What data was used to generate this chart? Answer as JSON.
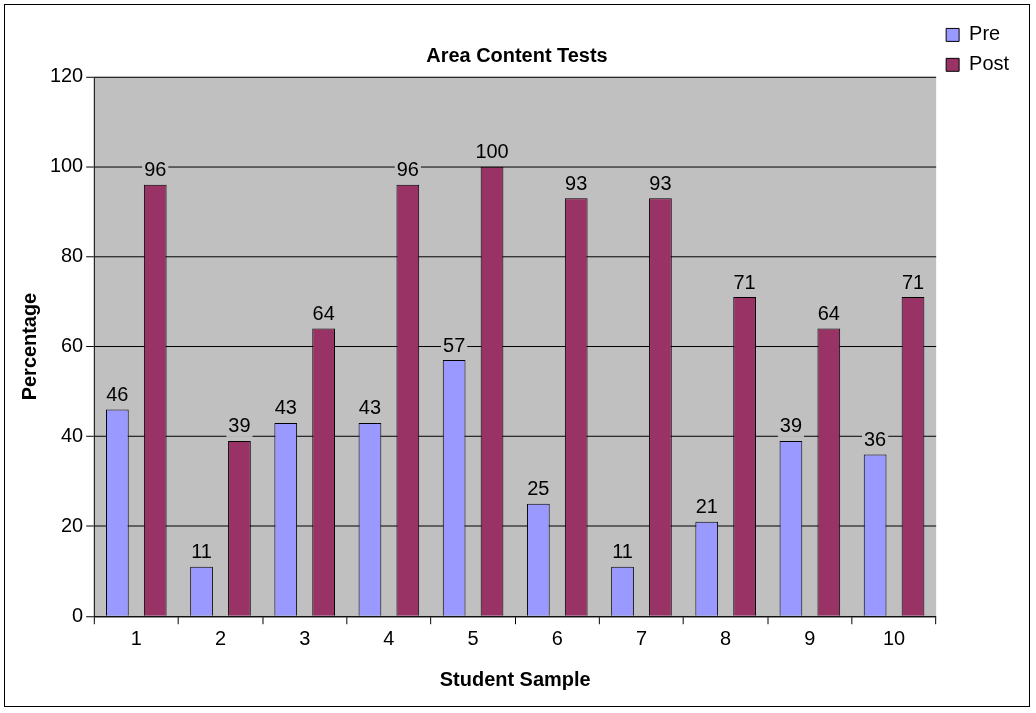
{
  "chart_data": {
    "type": "bar",
    "title": "Area Content Tests",
    "xlabel": "Student Sample",
    "ylabel": "Percentage",
    "categories": [
      "1",
      "2",
      "3",
      "4",
      "5",
      "6",
      "7",
      "8",
      "9",
      "10"
    ],
    "series": [
      {
        "name": "Pre",
        "color": "#9999ff",
        "values": [
          46,
          11,
          43,
          43,
          57,
          25,
          11,
          21,
          39,
          36
        ]
      },
      {
        "name": "Post",
        "color": "#993366",
        "values": [
          96,
          39,
          64,
          96,
          100,
          93,
          93,
          71,
          64,
          71
        ]
      }
    ],
    "ylim": [
      0,
      120
    ],
    "yticks": [
      0,
      20,
      40,
      60,
      80,
      100,
      120
    ],
    "grid": "y",
    "legend": "top right",
    "data_labels": true
  }
}
